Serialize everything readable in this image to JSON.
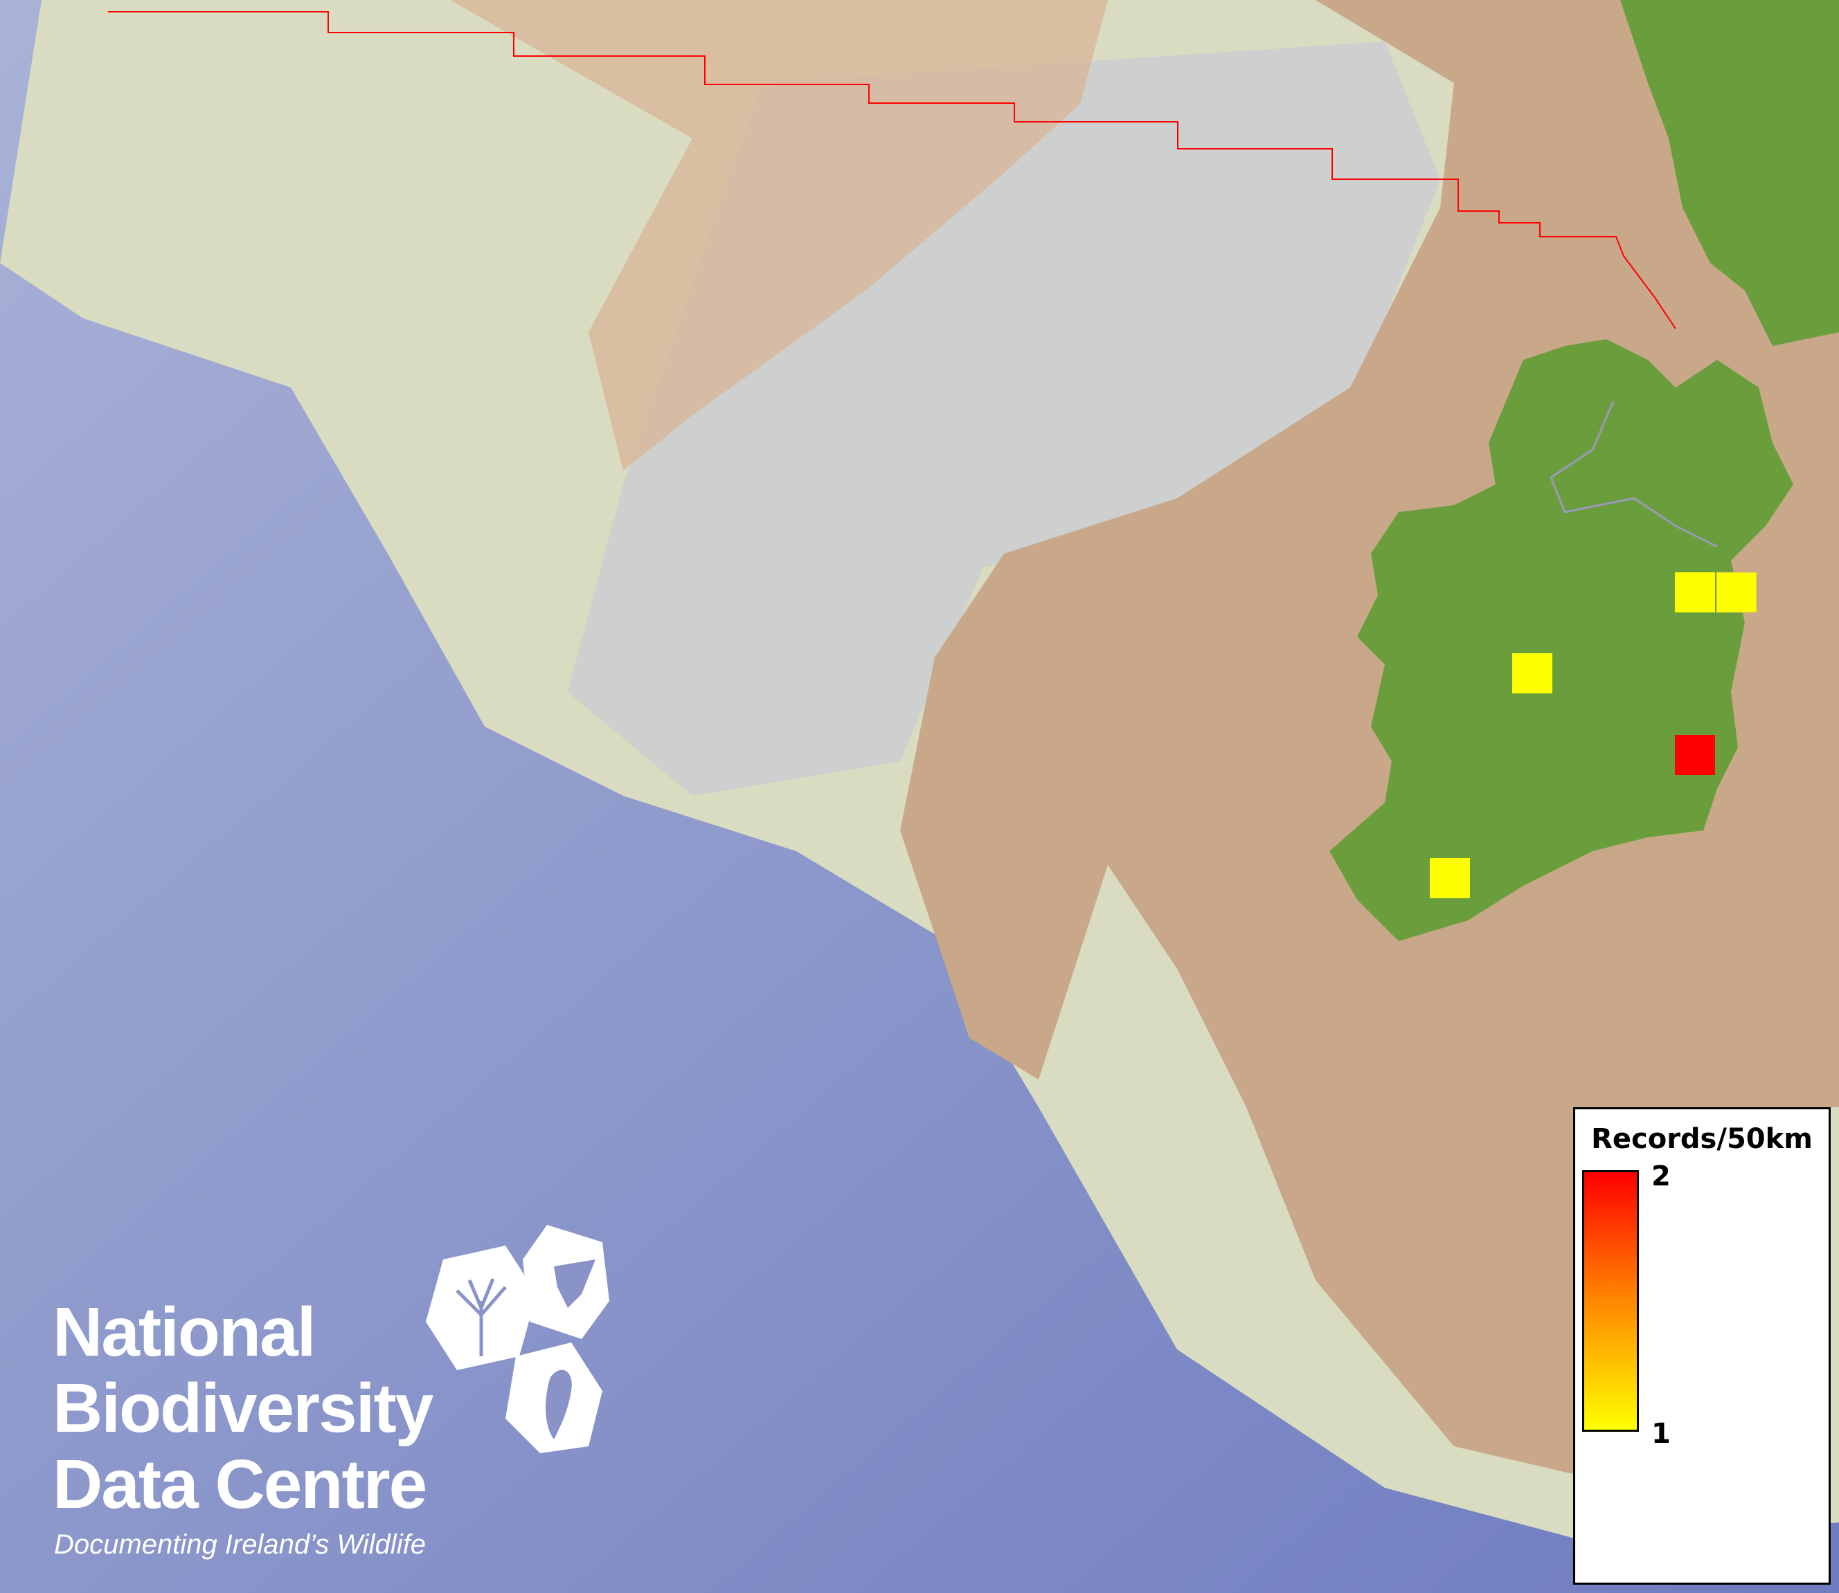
{
  "map": {
    "colors": {
      "ocean": "#7f89c6",
      "shelf": "#dcdfc4",
      "land": "#c9a88a",
      "ireland": "#6a9e3c",
      "boundary": "#ff0000"
    },
    "records": [
      {
        "label": "1",
        "color": "#ffff00"
      },
      {
        "label": "1",
        "color": "#ffff00"
      },
      {
        "label": "1",
        "color": "#ffff00"
      },
      {
        "label": "1",
        "color": "#ffff00"
      },
      {
        "label": "2",
        "color": "#ff0000"
      }
    ]
  },
  "legend": {
    "title": "Records/50km",
    "max_label": "2",
    "min_label": "1",
    "colors": {
      "max": "#ff0000",
      "min": "#ffff00"
    }
  },
  "logo": {
    "line1": "National",
    "line2": "Biodiversity",
    "line3": "Data Centre",
    "tagline": "Documenting Ireland’s Wildlife"
  }
}
